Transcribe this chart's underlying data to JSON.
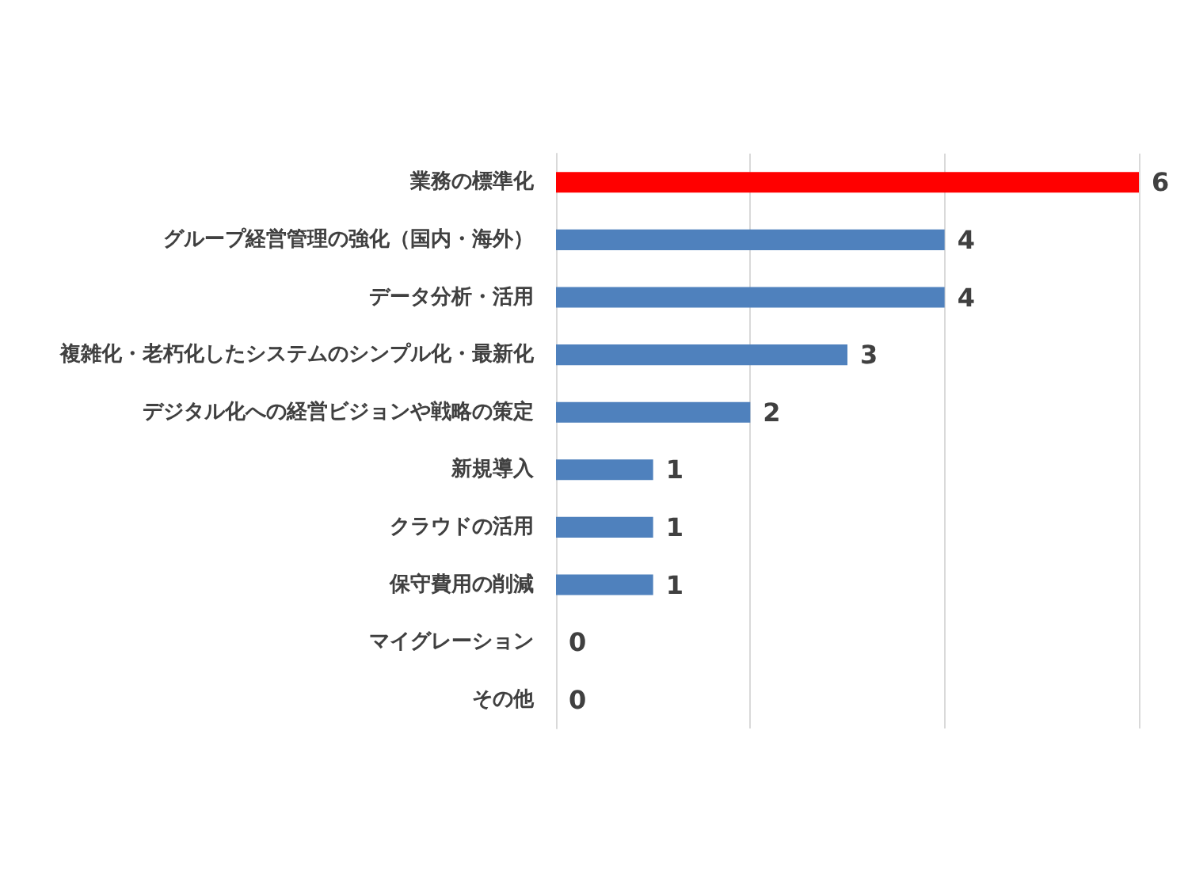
{
  "chart_data": {
    "type": "bar",
    "orientation": "horizontal",
    "categories": [
      "業務の標準化",
      "グループ経営管理の強化（国内・海外）",
      "データ分析・活用",
      "複雑化・老朽化したシステムのシンプル化・最新化",
      "デジタル化への経営ビジョンや戦略の策定",
      "新規導入",
      "クラウドの活用",
      "保守費用の削減",
      "マイグレーション",
      "その他"
    ],
    "values": [
      6,
      4,
      4,
      3,
      2,
      1,
      1,
      1,
      0,
      0
    ],
    "colors": [
      "#ff0000",
      "#4f81bd",
      "#4f81bd",
      "#4f81bd",
      "#4f81bd",
      "#4f81bd",
      "#4f81bd",
      "#4f81bd",
      "#4f81bd",
      "#4f81bd"
    ],
    "xlim": [
      0,
      6
    ],
    "xticks": [
      {
        "value": 0,
        "label": null
      },
      {
        "value": 2,
        "label": null
      },
      {
        "value": 4,
        "label": null
      },
      {
        "value": 6,
        "label": null
      }
    ],
    "grid": "x",
    "tick_labels": "y",
    "data_labels": true
  }
}
